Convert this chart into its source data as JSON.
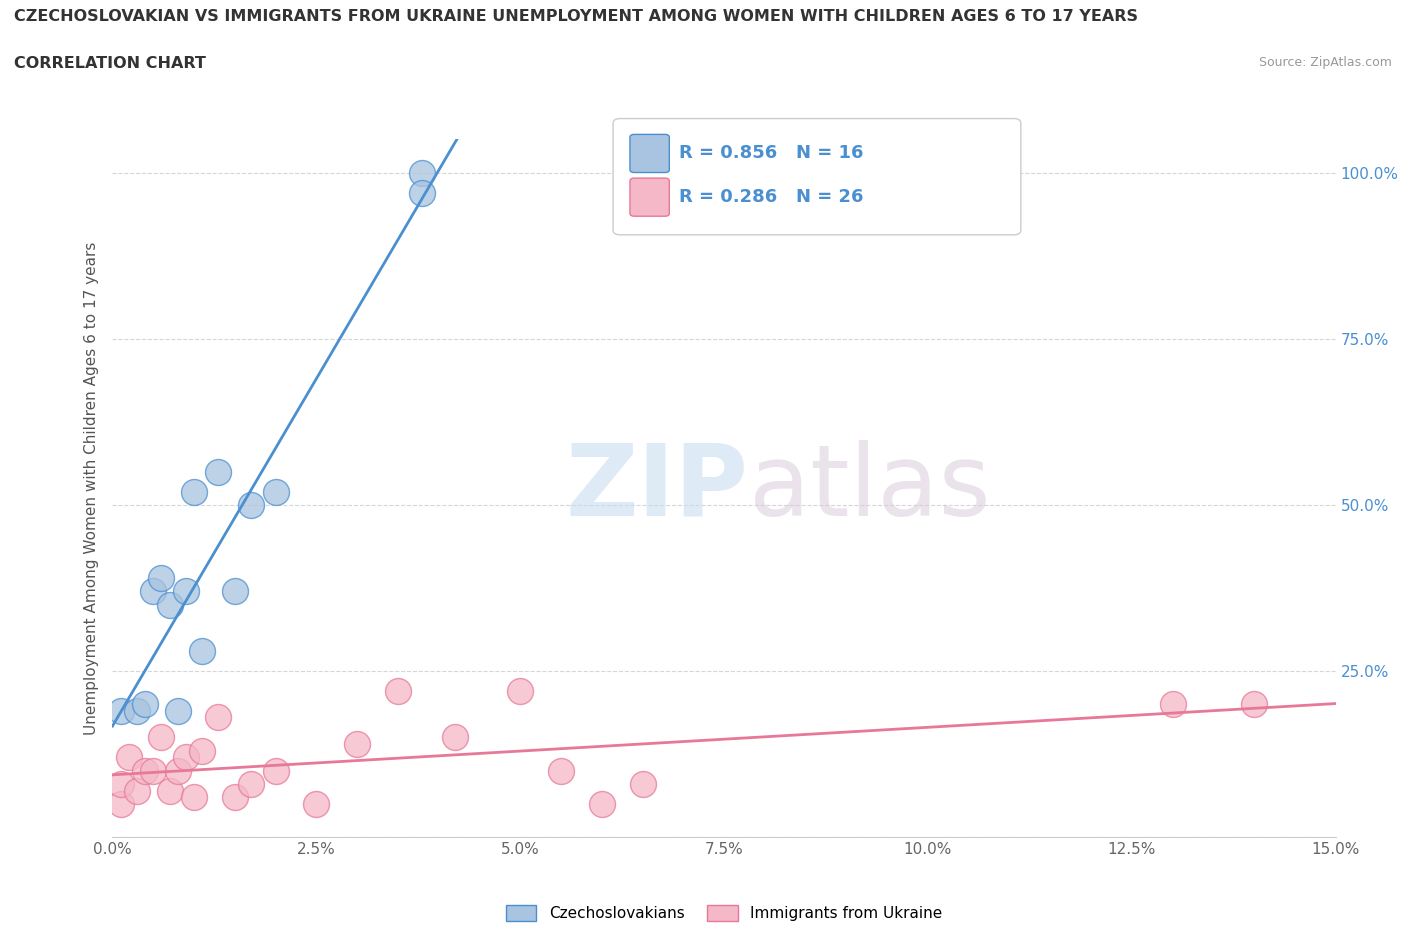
{
  "title_line1": "CZECHOSLOVAKIAN VS IMMIGRANTS FROM UKRAINE UNEMPLOYMENT AMONG WOMEN WITH CHILDREN AGES 6 TO 17 YEARS",
  "title_line2": "CORRELATION CHART",
  "source": "Source: ZipAtlas.com",
  "ylabel": "Unemployment Among Women with Children Ages 6 to 17 years",
  "xlim": [
    0.0,
    0.15
  ],
  "ylim": [
    0.0,
    1.05
  ],
  "ytick_values": [
    0.0,
    0.25,
    0.5,
    0.75,
    1.0
  ],
  "ytick_labels": [
    "",
    "25.0%",
    "50.0%",
    "75.0%",
    "100.0%"
  ],
  "xtick_values": [
    0.0,
    0.025,
    0.05,
    0.075,
    0.1,
    0.125,
    0.15
  ],
  "xtick_labels": [
    "0.0%",
    "2.5%",
    "5.0%",
    "7.5%",
    "10.0%",
    "12.5%",
    "15.0%"
  ],
  "r_czech": 0.856,
  "n_czech": 16,
  "r_ukraine": 0.286,
  "n_ukraine": 26,
  "czech_color": "#a8c4e0",
  "ukraine_color": "#f4b8c8",
  "czech_line_color": "#4a8fd0",
  "ukraine_line_color": "#e87898",
  "legend_label_1": "Czechoslovakians",
  "legend_label_2": "Immigrants from Ukraine",
  "watermark_zip": "ZIP",
  "watermark_atlas": "atlas",
  "background_color": "#ffffff",
  "czech_x": [
    0.001,
    0.003,
    0.004,
    0.005,
    0.006,
    0.007,
    0.008,
    0.009,
    0.01,
    0.011,
    0.013,
    0.015,
    0.017,
    0.02,
    0.038,
    0.038
  ],
  "czech_y": [
    0.19,
    0.19,
    0.2,
    0.37,
    0.39,
    0.35,
    0.19,
    0.37,
    0.52,
    0.28,
    0.55,
    0.37,
    0.5,
    0.52,
    1.0,
    0.97
  ],
  "ukraine_x": [
    0.001,
    0.001,
    0.002,
    0.003,
    0.004,
    0.005,
    0.006,
    0.007,
    0.008,
    0.009,
    0.01,
    0.011,
    0.013,
    0.015,
    0.017,
    0.02,
    0.025,
    0.03,
    0.035,
    0.042,
    0.05,
    0.055,
    0.06,
    0.065,
    0.13,
    0.14
  ],
  "ukraine_y": [
    0.05,
    0.08,
    0.12,
    0.07,
    0.1,
    0.1,
    0.15,
    0.07,
    0.1,
    0.12,
    0.06,
    0.13,
    0.18,
    0.06,
    0.08,
    0.1,
    0.05,
    0.14,
    0.22,
    0.15,
    0.22,
    0.1,
    0.05,
    0.08,
    0.2,
    0.2
  ]
}
